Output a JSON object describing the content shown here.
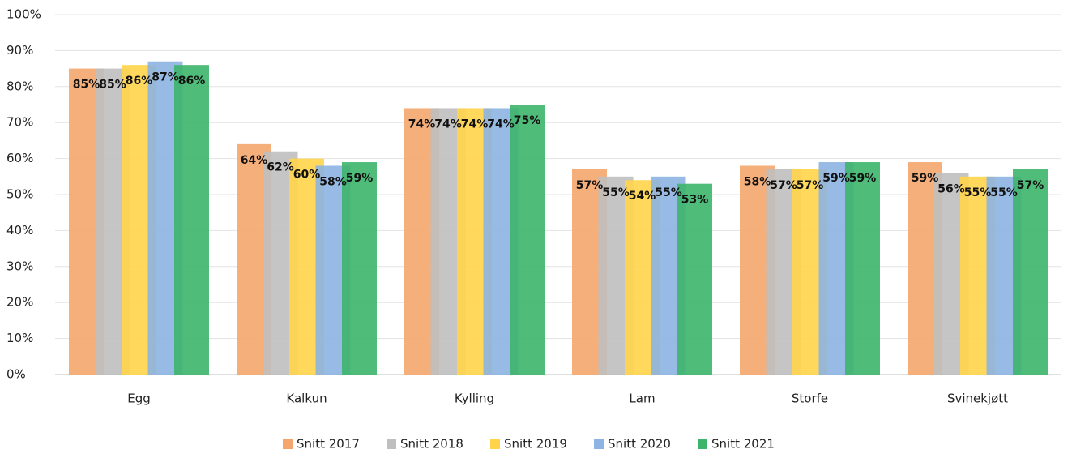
{
  "chart_data": {
    "type": "bar",
    "categories": [
      "Egg",
      "Kalkun",
      "Kylling",
      "Lam",
      "Storfe",
      "Svinekjøtt"
    ],
    "series": [
      {
        "name": "Snitt 2017",
        "color": "#F4A66D",
        "values": [
          85,
          64,
          74,
          57,
          58,
          59
        ],
        "value_labels": [
          "85%",
          "64%",
          "74%",
          "57%",
          "58%",
          "59%"
        ]
      },
      {
        "name": "Snitt 2018",
        "color": "#BFBFBF",
        "values": [
          85,
          62,
          74,
          55,
          57,
          56
        ],
        "value_labels": [
          "85%",
          "62%",
          "74%",
          "55%",
          "57%",
          "56%"
        ]
      },
      {
        "name": "Snitt 2019",
        "color": "#FFD44A",
        "values": [
          86,
          60,
          74,
          54,
          57,
          55
        ],
        "value_labels": [
          "86%",
          "60%",
          "74%",
          "54%",
          "57%",
          "55%"
        ]
      },
      {
        "name": "Snitt 2020",
        "color": "#8DB4E2",
        "values": [
          87,
          58,
          74,
          55,
          59,
          55
        ],
        "value_labels": [
          "87%",
          "58%",
          "74%",
          "55%",
          "59%",
          "55%"
        ]
      },
      {
        "name": "Snitt 2021",
        "color": "#3DB56A",
        "values": [
          86,
          59,
          75,
          53,
          59,
          57
        ],
        "value_labels": [
          "86%",
          "59%",
          "75%",
          "53%",
          "59%",
          "57%"
        ]
      }
    ],
    "ylim": [
      0,
      100
    ],
    "yticks": [
      {
        "value": 0,
        "label": "0%"
      },
      {
        "value": 10,
        "label": "10%"
      },
      {
        "value": 20,
        "label": "20%"
      },
      {
        "value": 30,
        "label": "30%"
      },
      {
        "value": 40,
        "label": "40%"
      },
      {
        "value": 50,
        "label": "50%"
      },
      {
        "value": 60,
        "label": "60%"
      },
      {
        "value": 70,
        "label": "70%"
      },
      {
        "value": 80,
        "label": "80%"
      },
      {
        "value": 90,
        "label": "90%"
      },
      {
        "value": 100,
        "label": "100%"
      }
    ],
    "grid": true,
    "legend": "bottom"
  }
}
